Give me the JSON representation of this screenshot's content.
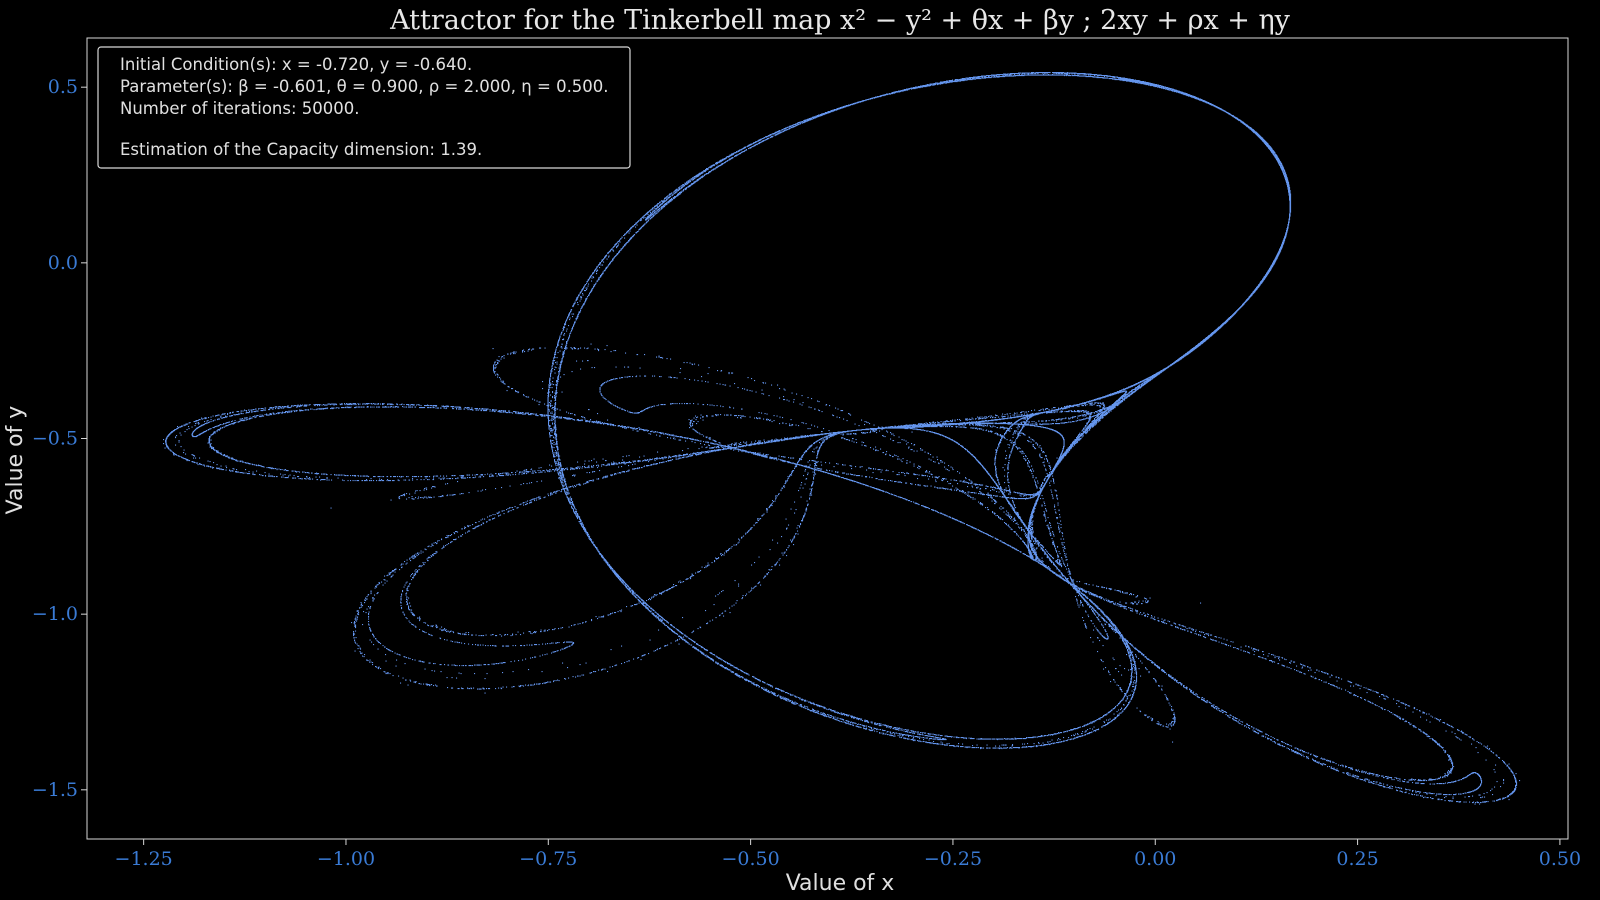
{
  "chart_data": {
    "type": "scatter",
    "title": "Attractor for the Tinkerbell map x² − y² + θx + βy ;  2xy + ρx + ηy",
    "xlabel": "Value of x",
    "ylabel": "Value of y",
    "xlim": [
      -1.32,
      0.51
    ],
    "ylim": [
      -1.64,
      0.64
    ],
    "x_ticks": [
      -1.25,
      -1.0,
      -0.75,
      -0.5,
      -0.25,
      0.0,
      0.25,
      0.5
    ],
    "x_tick_labels": [
      "−1.25",
      "−1.00",
      "−0.75",
      "−0.50",
      "−0.25",
      "0.00",
      "0.25",
      "0.50"
    ],
    "y_ticks": [
      0.5,
      0.0,
      -0.5,
      -1.0,
      -1.5
    ],
    "y_tick_labels": [
      "0.5",
      "0.0",
      "−0.5",
      "−1.0",
      "−1.5"
    ],
    "grid": false,
    "legend_placement": "top-left",
    "point_color": "#6495ed",
    "initial_condition": {
      "x": -0.72,
      "y": -0.64
    },
    "parameters": {
      "beta": -0.601,
      "theta": 0.9,
      "rho": 2.0,
      "eta": 0.5
    },
    "iterations": 50000,
    "info": {
      "line1": "Initial Condition(s): x = -0.720, y = -0.640.",
      "line2": "Parameter(s): β = -0.601, θ = 0.900, ρ = 2.000, η = 0.500.",
      "line3": "Number of iterations: 50000.",
      "line4": "Estimation of the Capacity dimension: 1.39."
    }
  }
}
